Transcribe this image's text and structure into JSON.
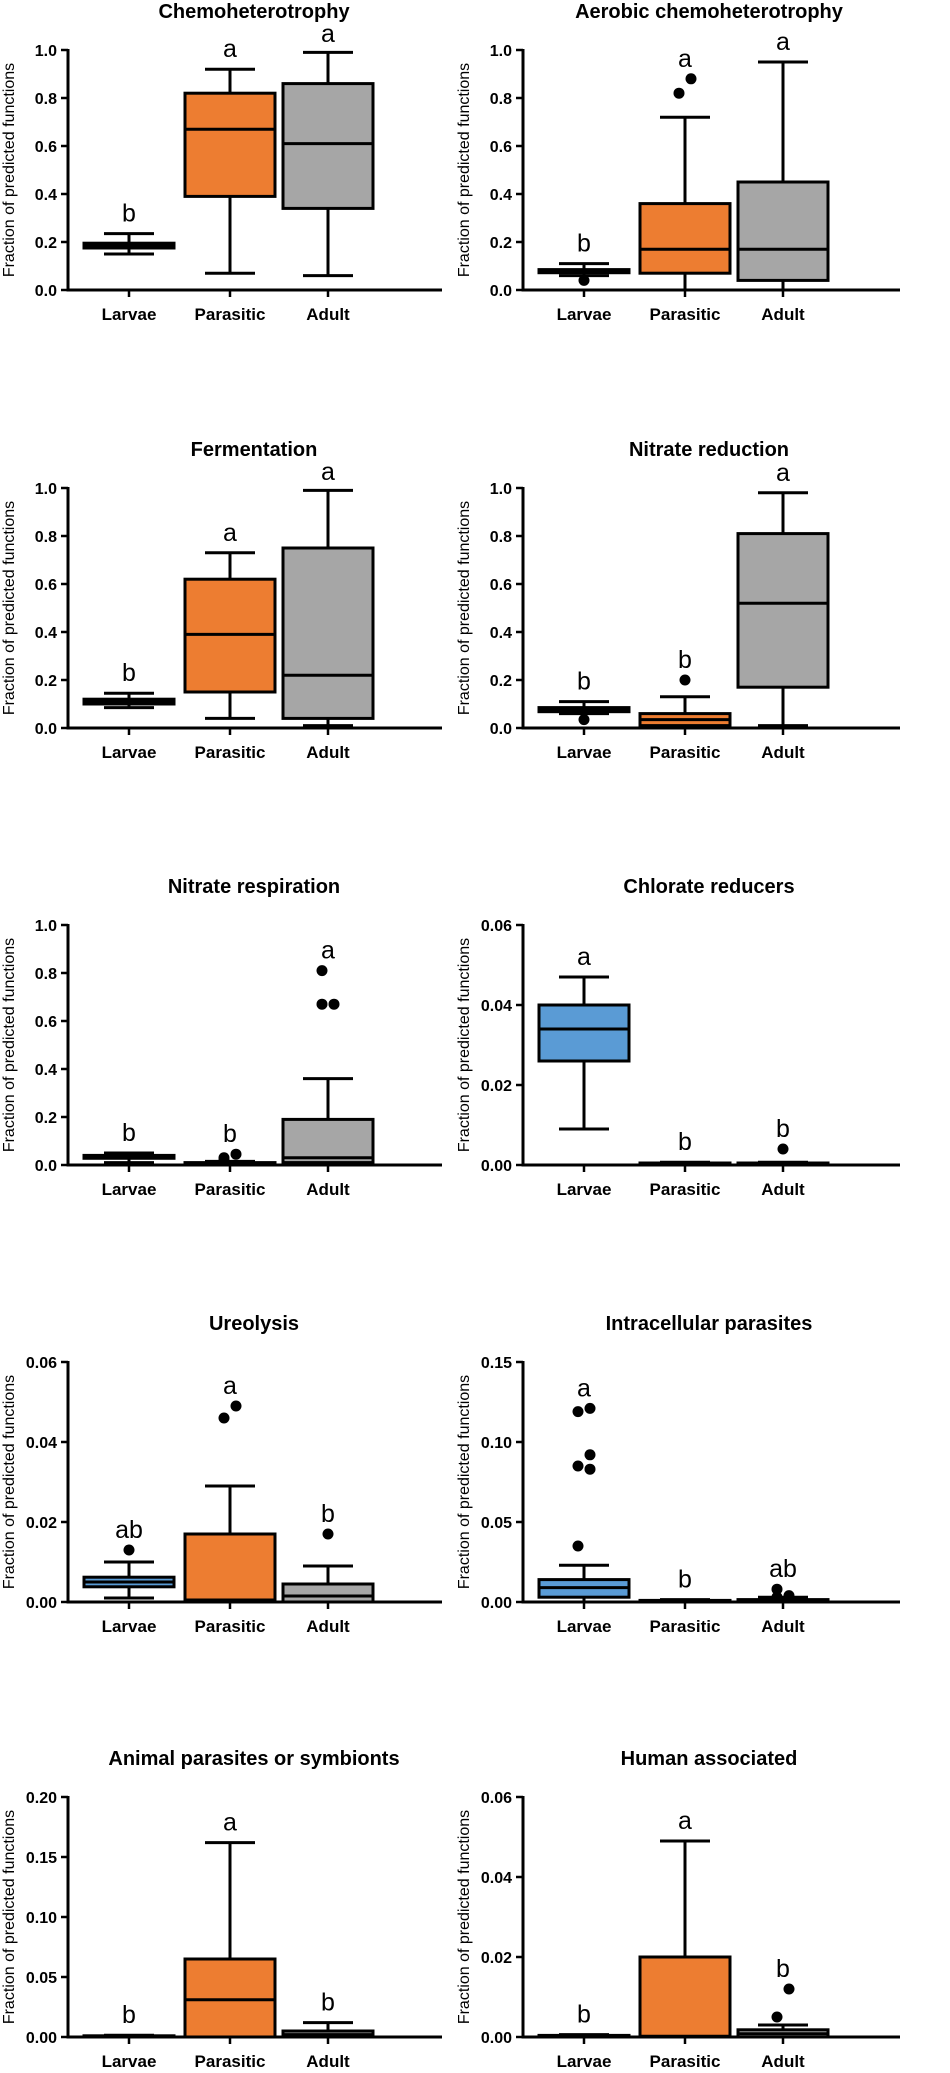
{
  "colors": {
    "Larvae": "#5a9bd5",
    "Parasitic": "#ed7d31",
    "Adult": "#a6a6a6",
    "line": "#000000"
  },
  "chart_data": [
    {
      "type": "box",
      "title": "Chemoheterotrophy",
      "ylabel": "Fraction of predicted functions",
      "ylim": [
        0,
        1.0
      ],
      "yticks": [
        "0.0",
        "0.2",
        "0.4",
        "0.6",
        "0.8",
        "1.0"
      ],
      "categories": [
        "Larvae",
        "Parasitic",
        "Adult"
      ],
      "boxes": [
        {
          "group": "Larvae",
          "min": 0.15,
          "q1": 0.175,
          "median": 0.185,
          "q3": 0.195,
          "max": 0.235,
          "outliers": [],
          "label": "b"
        },
        {
          "group": "Parasitic",
          "min": 0.07,
          "q1": 0.39,
          "median": 0.67,
          "q3": 0.82,
          "max": 0.92,
          "outliers": [],
          "label": "a"
        },
        {
          "group": "Adult",
          "min": 0.06,
          "q1": 0.34,
          "median": 0.61,
          "q3": 0.86,
          "max": 0.99,
          "outliers": [],
          "label": "a"
        }
      ]
    },
    {
      "type": "box",
      "title": "Aerobic chemoheterotrophy",
      "ylabel": "Fraction of predicted functions",
      "ylim": [
        0,
        1.0
      ],
      "yticks": [
        "0.0",
        "0.2",
        "0.4",
        "0.6",
        "0.8",
        "1.0"
      ],
      "categories": [
        "Larvae",
        "Parasitic",
        "Adult"
      ],
      "boxes": [
        {
          "group": "Larvae",
          "min": 0.06,
          "q1": 0.072,
          "median": 0.078,
          "q3": 0.085,
          "max": 0.11,
          "outliers": [
            0.04
          ],
          "label": "b"
        },
        {
          "group": "Parasitic",
          "min": 0.0,
          "q1": 0.07,
          "median": 0.17,
          "q3": 0.36,
          "max": 0.72,
          "outliers": [
            0.82,
            0.88
          ],
          "label": "a"
        },
        {
          "group": "Adult",
          "min": 0.0,
          "q1": 0.04,
          "median": 0.17,
          "q3": 0.45,
          "max": 0.95,
          "outliers": [],
          "label": "a"
        }
      ]
    },
    {
      "type": "box",
      "title": "Fermentation",
      "ylabel": "Fraction of predicted functions",
      "ylim": [
        0,
        1.0
      ],
      "yticks": [
        "0.0",
        "0.2",
        "0.4",
        "0.6",
        "0.8",
        "1.0"
      ],
      "categories": [
        "Larvae",
        "Parasitic",
        "Adult"
      ],
      "boxes": [
        {
          "group": "Larvae",
          "min": 0.085,
          "q1": 0.1,
          "median": 0.11,
          "q3": 0.12,
          "max": 0.145,
          "outliers": [],
          "label": "b"
        },
        {
          "group": "Parasitic",
          "min": 0.04,
          "q1": 0.15,
          "median": 0.39,
          "q3": 0.62,
          "max": 0.73,
          "outliers": [],
          "label": "a"
        },
        {
          "group": "Adult",
          "min": 0.01,
          "q1": 0.04,
          "median": 0.22,
          "q3": 0.75,
          "max": 0.99,
          "outliers": [],
          "label": "a"
        }
      ]
    },
    {
      "type": "box",
      "title": "Nitrate reduction",
      "ylabel": "Fraction of predicted functions",
      "ylim": [
        0,
        1.0
      ],
      "yticks": [
        "0.0",
        "0.2",
        "0.4",
        "0.6",
        "0.8",
        "1.0"
      ],
      "categories": [
        "Larvae",
        "Parasitic",
        "Adult"
      ],
      "boxes": [
        {
          "group": "Larvae",
          "min": 0.06,
          "q1": 0.068,
          "median": 0.075,
          "q3": 0.085,
          "max": 0.11,
          "outliers": [
            0.035
          ],
          "label": "b"
        },
        {
          "group": "Parasitic",
          "min": 0.0,
          "q1": 0.01,
          "median": 0.035,
          "q3": 0.06,
          "max": 0.13,
          "outliers": [
            0.2
          ],
          "label": "b"
        },
        {
          "group": "Adult",
          "min": 0.01,
          "q1": 0.17,
          "median": 0.52,
          "q3": 0.81,
          "max": 0.98,
          "outliers": [],
          "label": "a"
        }
      ]
    },
    {
      "type": "box",
      "title": "Nitrate respiration",
      "ylabel": "Fraction of predicted functions",
      "ylim": [
        0,
        1.0
      ],
      "yticks": [
        "0.0",
        "0.2",
        "0.4",
        "0.6",
        "0.8",
        "1.0"
      ],
      "categories": [
        "Larvae",
        "Parasitic",
        "Adult"
      ],
      "boxes": [
        {
          "group": "Larvae",
          "min": 0.01,
          "q1": 0.028,
          "median": 0.033,
          "q3": 0.04,
          "max": 0.05,
          "outliers": [],
          "label": "b"
        },
        {
          "group": "Parasitic",
          "min": 0.0,
          "q1": 0.0,
          "median": 0.005,
          "q3": 0.01,
          "max": 0.015,
          "outliers": [
            0.02,
            0.045,
            0.03
          ],
          "label": "b"
        },
        {
          "group": "Adult",
          "min": 0.0,
          "q1": 0.01,
          "median": 0.03,
          "q3": 0.19,
          "max": 0.36,
          "outliers": [
            0.67,
            0.67,
            0.81
          ],
          "label": "a"
        }
      ]
    },
    {
      "type": "box",
      "title": "Chlorate reducers",
      "ylabel": "Fraction of predicted functions",
      "ylim": [
        0,
        0.06
      ],
      "yticks": [
        "0.00",
        "0.02",
        "0.04",
        "0.06"
      ],
      "categories": [
        "Larvae",
        "Parasitic",
        "Adult"
      ],
      "boxes": [
        {
          "group": "Larvae",
          "min": 0.009,
          "q1": 0.026,
          "median": 0.034,
          "q3": 0.04,
          "max": 0.047,
          "outliers": [],
          "label": "a"
        },
        {
          "group": "Parasitic",
          "min": 0.0,
          "q1": 0.0,
          "median": 0.0003,
          "q3": 0.0005,
          "max": 0.0007,
          "outliers": [],
          "label": "b"
        },
        {
          "group": "Adult",
          "min": 0.0,
          "q1": 0.0,
          "median": 0.0003,
          "q3": 0.0005,
          "max": 0.0007,
          "outliers": [
            0.004
          ],
          "label": "b"
        }
      ]
    },
    {
      "type": "box",
      "title": "Ureolysis",
      "ylabel": "Fraction of predicted functions",
      "ylim": [
        0,
        0.06
      ],
      "yticks": [
        "0.00",
        "0.02",
        "0.04",
        "0.06"
      ],
      "categories": [
        "Larvae",
        "Parasitic",
        "Adult"
      ],
      "boxes": [
        {
          "group": "Larvae",
          "min": 0.001,
          "q1": 0.0038,
          "median": 0.005,
          "q3": 0.0062,
          "max": 0.01,
          "outliers": [
            0.013
          ],
          "label": "ab"
        },
        {
          "group": "Parasitic",
          "min": 0.0,
          "q1": 0.0,
          "median": 0.0005,
          "q3": 0.017,
          "max": 0.029,
          "outliers": [
            0.046,
            0.049
          ],
          "label": "a"
        },
        {
          "group": "Adult",
          "min": 0.0,
          "q1": 0.0,
          "median": 0.0015,
          "q3": 0.0045,
          "max": 0.009,
          "outliers": [
            0.017
          ],
          "label": "b"
        }
      ]
    },
    {
      "type": "box",
      "title": "Intracellular parasites",
      "ylabel": "Fraction of predicted functions",
      "ylim": [
        0,
        0.15
      ],
      "yticks": [
        "0.00",
        "0.05",
        "0.10",
        "0.15"
      ],
      "categories": [
        "Larvae",
        "Parasitic",
        "Adult"
      ],
      "boxes": [
        {
          "group": "Larvae",
          "min": 0.0,
          "q1": 0.003,
          "median": 0.009,
          "q3": 0.014,
          "max": 0.023,
          "outliers": [
            0.035,
            0.083,
            0.085,
            0.092,
            0.119,
            0.121
          ],
          "label": "a"
        },
        {
          "group": "Parasitic",
          "min": 0.0,
          "q1": 0.0,
          "median": 0.0005,
          "q3": 0.001,
          "max": 0.0015,
          "outliers": [],
          "label": "b"
        },
        {
          "group": "Adult",
          "min": 0.0,
          "q1": 0.0,
          "median": 0.0003,
          "q3": 0.0015,
          "max": 0.003,
          "outliers": [
            0.003,
            0.004,
            0.008
          ],
          "label": "ab"
        }
      ]
    },
    {
      "type": "box",
      "title": "Animal parasites or symbionts",
      "ylabel": "Fraction of predicted functions",
      "ylim": [
        0,
        0.2
      ],
      "yticks": [
        "0.00",
        "0.05",
        "0.10",
        "0.15",
        "0.20"
      ],
      "categories": [
        "Larvae",
        "Parasitic",
        "Adult"
      ],
      "boxes": [
        {
          "group": "Larvae",
          "min": 0.0,
          "q1": 0.0,
          "median": 0.0005,
          "q3": 0.001,
          "max": 0.0015,
          "outliers": [],
          "label": "b"
        },
        {
          "group": "Parasitic",
          "min": 0.0,
          "q1": 0.0,
          "median": 0.031,
          "q3": 0.065,
          "max": 0.162,
          "outliers": [],
          "label": "a"
        },
        {
          "group": "Adult",
          "min": 0.0,
          "q1": 0.0,
          "median": 0.002,
          "q3": 0.005,
          "max": 0.012,
          "outliers": [],
          "label": "b"
        }
      ]
    },
    {
      "type": "box",
      "title": "Human associated",
      "ylabel": "Fraction of predicted functions",
      "ylim": [
        0,
        0.06
      ],
      "yticks": [
        "0.00",
        "0.02",
        "0.04",
        "0.06"
      ],
      "categories": [
        "Larvae",
        "Parasitic",
        "Adult"
      ],
      "boxes": [
        {
          "group": "Larvae",
          "min": 0.0,
          "q1": 0.0,
          "median": 0.0002,
          "q3": 0.0004,
          "max": 0.0006,
          "outliers": [],
          "label": "b"
        },
        {
          "group": "Parasitic",
          "min": 0.0,
          "q1": 0.0,
          "median": 0.0002,
          "q3": 0.02,
          "max": 0.049,
          "outliers": [],
          "label": "a"
        },
        {
          "group": "Adult",
          "min": 0.0,
          "q1": 0.0,
          "median": 0.0008,
          "q3": 0.0018,
          "max": 0.003,
          "outliers": [
            0.005,
            0.012
          ],
          "label": "b"
        }
      ]
    }
  ]
}
